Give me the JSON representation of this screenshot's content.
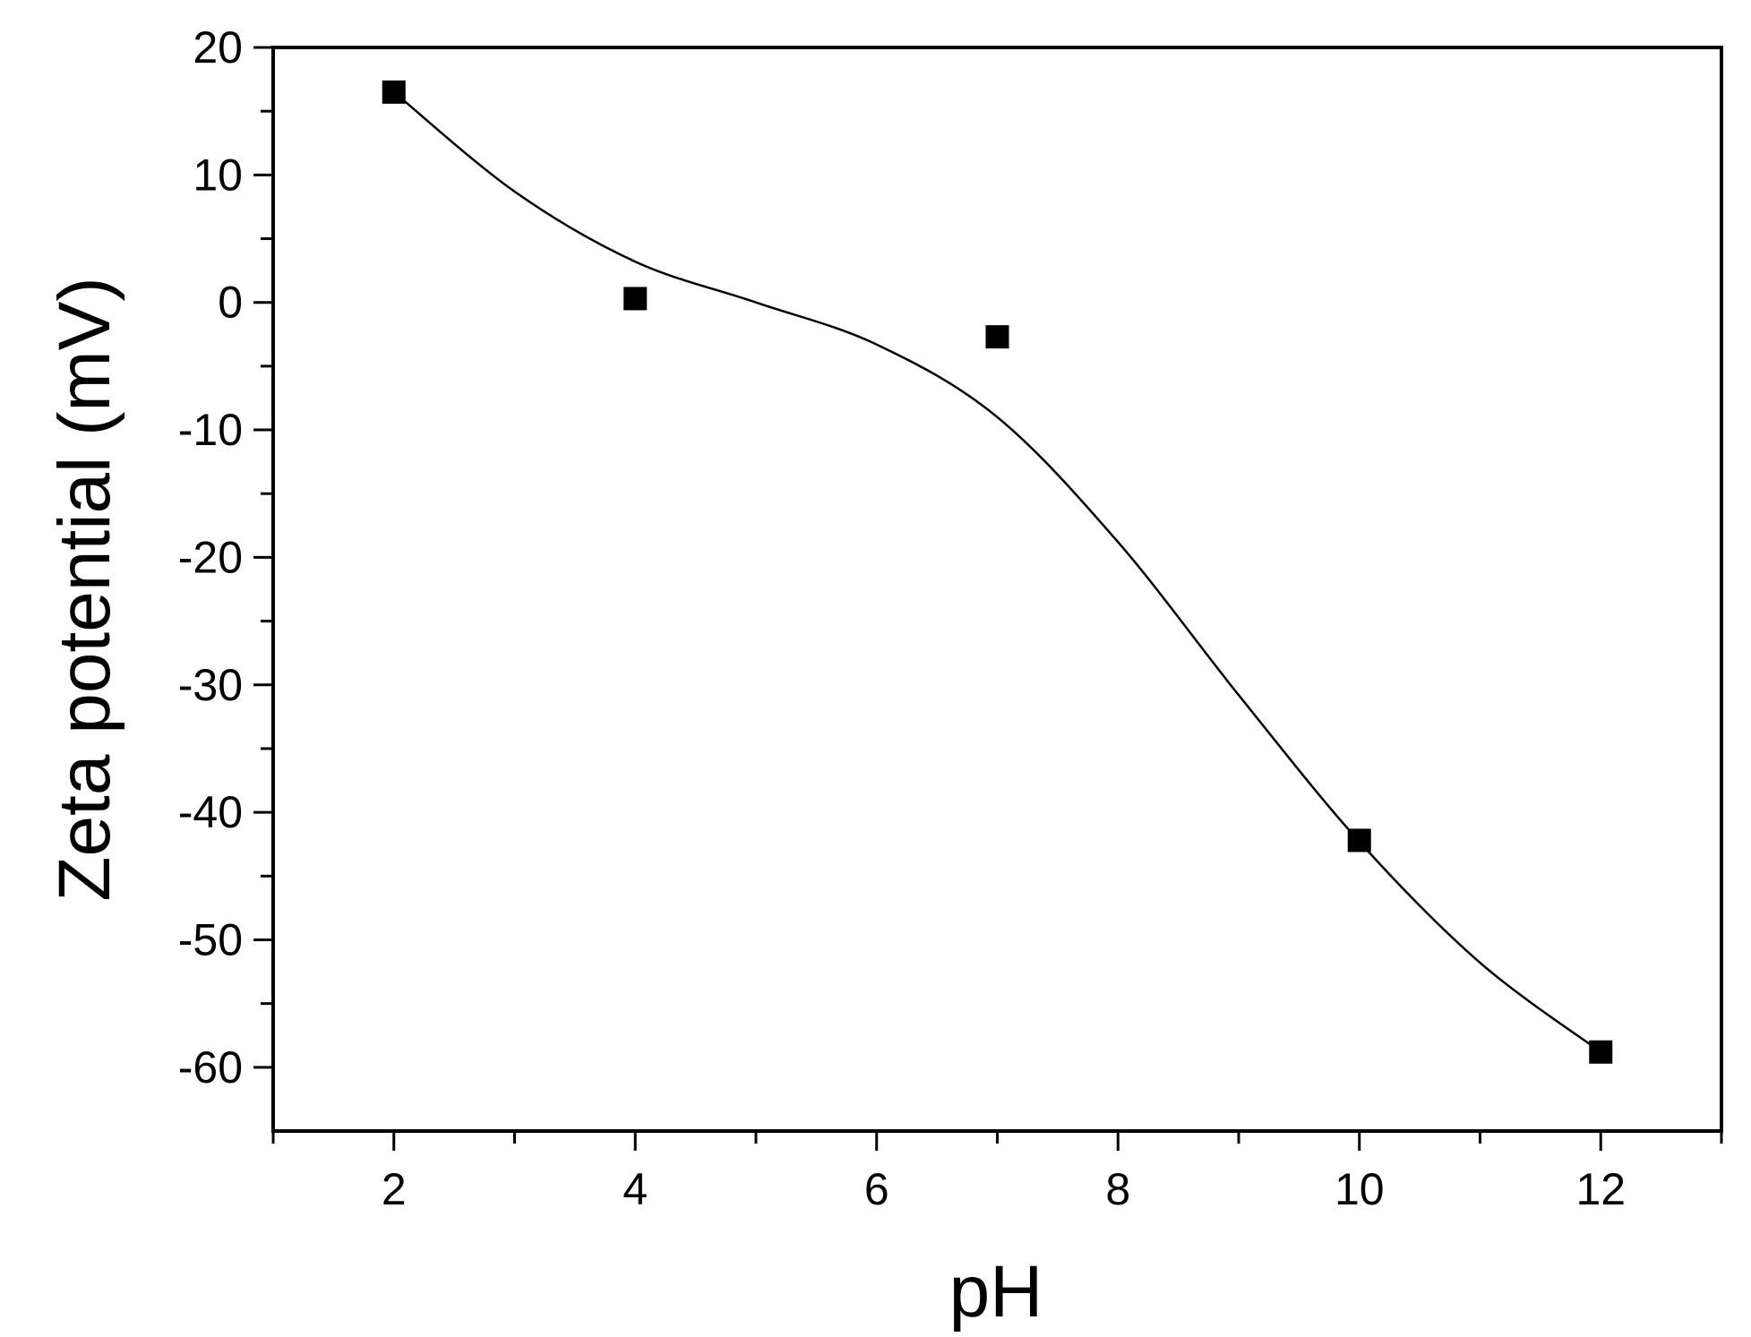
{
  "chart_data": {
    "type": "scatter",
    "title": "",
    "xlabel": "pH",
    "ylabel": "Zeta potential (mV)",
    "xlim": [
      1,
      13
    ],
    "ylim": [
      -65,
      20
    ],
    "x_major_ticks": [
      2,
      4,
      6,
      8,
      10,
      12
    ],
    "y_major_ticks": [
      20,
      10,
      0,
      -10,
      -20,
      -30,
      -40,
      -50,
      -60
    ],
    "grid": false,
    "legend": "none",
    "series": [
      {
        "marker": "square",
        "color": "#000000",
        "points": [
          {
            "x": 2,
            "y": 16.5
          },
          {
            "x": 4,
            "y": 0.3
          },
          {
            "x": 7,
            "y": -2.7
          },
          {
            "x": 10,
            "y": -42.2
          },
          {
            "x": 12,
            "y": -58.8
          }
        ]
      }
    ],
    "fit_curve": {
      "style": "smooth-line",
      "color": "#000000",
      "points": [
        {
          "x": 2,
          "y": 16.5
        },
        {
          "x": 3,
          "y": 8.7
        },
        {
          "x": 4,
          "y": 3.2
        },
        {
          "x": 5,
          "y": 0.0
        },
        {
          "x": 6,
          "y": -3.3
        },
        {
          "x": 7,
          "y": -9.0
        },
        {
          "x": 8,
          "y": -18.8
        },
        {
          "x": 9,
          "y": -30.8
        },
        {
          "x": 10,
          "y": -42.3
        },
        {
          "x": 11,
          "y": -51.8
        },
        {
          "x": 12,
          "y": -58.8
        }
      ]
    }
  }
}
